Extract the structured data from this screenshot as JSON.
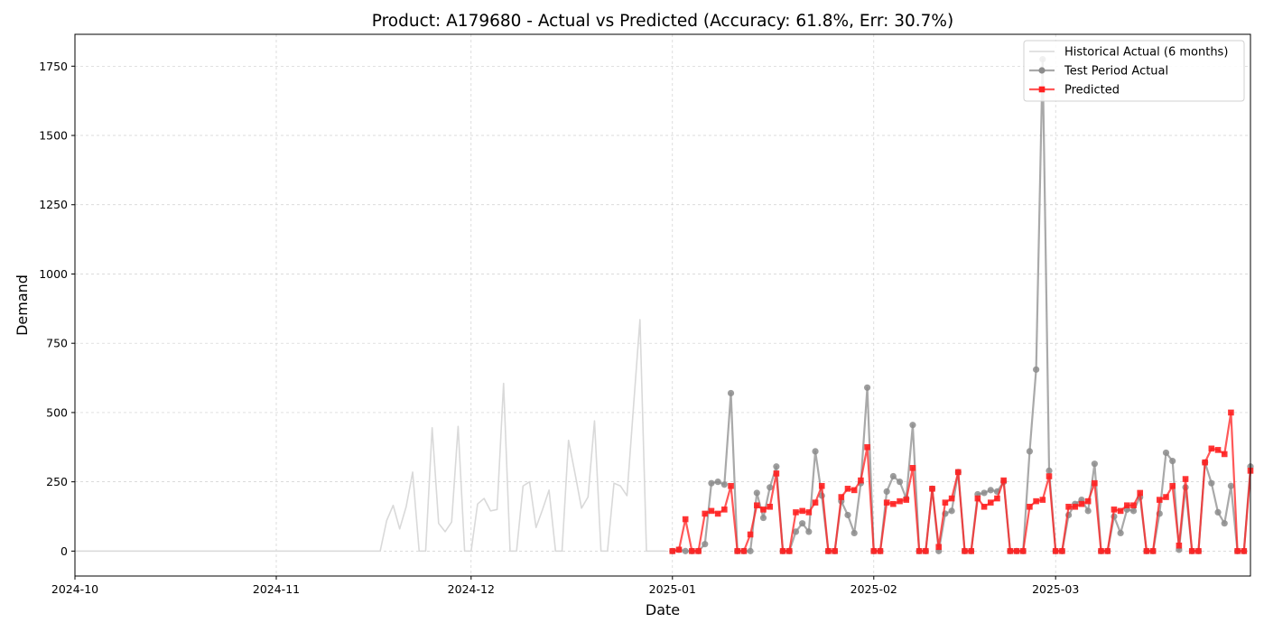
{
  "chart_data": {
    "type": "line",
    "title": "Product: A179680 - Actual vs Predicted (Accuracy: 61.8%, Err: 30.7%)",
    "xlabel": "Date",
    "ylabel": "Demand",
    "x_range": [
      "2024-10-01",
      "2025-03-31"
    ],
    "ylim": [
      -90,
      1865
    ],
    "y_ticks": [
      0,
      250,
      500,
      750,
      1000,
      1250,
      1500,
      1750
    ],
    "x_ticks": [
      {
        "date": "2024-10-01",
        "label": "2024-10"
      },
      {
        "date": "2024-11-01",
        "label": "2024-11"
      },
      {
        "date": "2024-12-01",
        "label": "2024-12"
      },
      {
        "date": "2025-01-01",
        "label": "2025-01"
      },
      {
        "date": "2025-02-01",
        "label": "2025-02"
      },
      {
        "date": "2025-03-01",
        "label": "2025-03"
      }
    ],
    "grid": true,
    "legend_position": "top-right",
    "series": [
      {
        "name": "Historical Actual (6 months)",
        "color": "#d9d9d9",
        "marker": "none",
        "points": [
          [
            "2024-10-01",
            0
          ],
          [
            "2024-10-15",
            0
          ],
          [
            "2024-11-01",
            0
          ],
          [
            "2024-11-15",
            0
          ],
          [
            "2024-11-17",
            0
          ],
          [
            "2024-11-18",
            110
          ],
          [
            "2024-11-19",
            165
          ],
          [
            "2024-11-20",
            80
          ],
          [
            "2024-11-21",
            160
          ],
          [
            "2024-11-22",
            285
          ],
          [
            "2024-11-23",
            0
          ],
          [
            "2024-11-24",
            0
          ],
          [
            "2024-11-25",
            445
          ],
          [
            "2024-11-26",
            100
          ],
          [
            "2024-11-27",
            70
          ],
          [
            "2024-11-28",
            105
          ],
          [
            "2024-11-29",
            450
          ],
          [
            "2024-11-30",
            0
          ],
          [
            "2024-12-01",
            0
          ],
          [
            "2024-12-02",
            170
          ],
          [
            "2024-12-03",
            190
          ],
          [
            "2024-12-04",
            145
          ],
          [
            "2024-12-05",
            150
          ],
          [
            "2024-12-06",
            605
          ],
          [
            "2024-12-07",
            0
          ],
          [
            "2024-12-08",
            0
          ],
          [
            "2024-12-09",
            235
          ],
          [
            "2024-12-10",
            250
          ],
          [
            "2024-12-11",
            85
          ],
          [
            "2024-12-12",
            150
          ],
          [
            "2024-12-13",
            220
          ],
          [
            "2024-12-14",
            0
          ],
          [
            "2024-12-15",
            0
          ],
          [
            "2024-12-16",
            400
          ],
          [
            "2024-12-17",
            280
          ],
          [
            "2024-12-18",
            155
          ],
          [
            "2024-12-19",
            195
          ],
          [
            "2024-12-20",
            470
          ],
          [
            "2024-12-21",
            0
          ],
          [
            "2024-12-22",
            0
          ],
          [
            "2024-12-23",
            245
          ],
          [
            "2024-12-24",
            235
          ],
          [
            "2024-12-25",
            200
          ],
          [
            "2024-12-26",
            520
          ],
          [
            "2024-12-27",
            835
          ],
          [
            "2024-12-28",
            0
          ],
          [
            "2024-12-31",
            0
          ]
        ]
      },
      {
        "name": "Test Period Actual",
        "color": "#8c8c8c",
        "marker": "circle",
        "points": [
          [
            "2025-01-01",
            0
          ],
          [
            "2025-01-02",
            5
          ],
          [
            "2025-01-03",
            0
          ],
          [
            "2025-01-04",
            0
          ],
          [
            "2025-01-05",
            0
          ],
          [
            "2025-01-06",
            25
          ],
          [
            "2025-01-07",
            245
          ],
          [
            "2025-01-08",
            250
          ],
          [
            "2025-01-09",
            240
          ],
          [
            "2025-01-10",
            570
          ],
          [
            "2025-01-11",
            0
          ],
          [
            "2025-01-12",
            0
          ],
          [
            "2025-01-13",
            0
          ],
          [
            "2025-01-14",
            210
          ],
          [
            "2025-01-15",
            120
          ],
          [
            "2025-01-16",
            230
          ],
          [
            "2025-01-17",
            305
          ],
          [
            "2025-01-18",
            0
          ],
          [
            "2025-01-19",
            0
          ],
          [
            "2025-01-20",
            70
          ],
          [
            "2025-01-21",
            100
          ],
          [
            "2025-01-22",
            70
          ],
          [
            "2025-01-23",
            360
          ],
          [
            "2025-01-24",
            200
          ],
          [
            "2025-01-25",
            0
          ],
          [
            "2025-01-26",
            0
          ],
          [
            "2025-01-27",
            180
          ],
          [
            "2025-01-28",
            130
          ],
          [
            "2025-01-29",
            65
          ],
          [
            "2025-01-30",
            245
          ],
          [
            "2025-01-31",
            590
          ],
          [
            "2025-02-01",
            0
          ],
          [
            "2025-02-02",
            0
          ],
          [
            "2025-02-03",
            215
          ],
          [
            "2025-02-04",
            270
          ],
          [
            "2025-02-05",
            250
          ],
          [
            "2025-02-06",
            190
          ],
          [
            "2025-02-07",
            455
          ],
          [
            "2025-02-08",
            0
          ],
          [
            "2025-02-09",
            0
          ],
          [
            "2025-02-10",
            225
          ],
          [
            "2025-02-11",
            0
          ],
          [
            "2025-02-12",
            135
          ],
          [
            "2025-02-13",
            145
          ],
          [
            "2025-02-14",
            285
          ],
          [
            "2025-02-15",
            0
          ],
          [
            "2025-02-16",
            0
          ],
          [
            "2025-02-17",
            205
          ],
          [
            "2025-02-18",
            210
          ],
          [
            "2025-02-19",
            220
          ],
          [
            "2025-02-20",
            215
          ],
          [
            "2025-02-21",
            250
          ],
          [
            "2025-02-22",
            0
          ],
          [
            "2025-02-23",
            0
          ],
          [
            "2025-02-24",
            0
          ],
          [
            "2025-02-25",
            360
          ],
          [
            "2025-02-26",
            655
          ],
          [
            "2025-02-27",
            1775
          ],
          [
            "2025-02-28",
            290
          ],
          [
            "2025-03-01",
            0
          ],
          [
            "2025-03-02",
            0
          ],
          [
            "2025-03-03",
            130
          ],
          [
            "2025-03-04",
            170
          ],
          [
            "2025-03-05",
            185
          ],
          [
            "2025-03-06",
            145
          ],
          [
            "2025-03-07",
            315
          ],
          [
            "2025-03-08",
            0
          ],
          [
            "2025-03-09",
            0
          ],
          [
            "2025-03-10",
            125
          ],
          [
            "2025-03-11",
            65
          ],
          [
            "2025-03-12",
            150
          ],
          [
            "2025-03-13",
            145
          ],
          [
            "2025-03-14",
            195
          ],
          [
            "2025-03-15",
            0
          ],
          [
            "2025-03-16",
            0
          ],
          [
            "2025-03-17",
            135
          ],
          [
            "2025-03-18",
            355
          ],
          [
            "2025-03-19",
            325
          ],
          [
            "2025-03-20",
            5
          ],
          [
            "2025-03-21",
            230
          ],
          [
            "2025-03-22",
            0
          ],
          [
            "2025-03-23",
            0
          ],
          [
            "2025-03-24",
            320
          ],
          [
            "2025-03-25",
            245
          ],
          [
            "2025-03-26",
            140
          ],
          [
            "2025-03-27",
            100
          ],
          [
            "2025-03-28",
            235
          ],
          [
            "2025-03-29",
            0
          ],
          [
            "2025-03-30",
            0
          ],
          [
            "2025-03-31",
            305
          ]
        ]
      },
      {
        "name": "Predicted",
        "color": "#ff2020",
        "marker": "square",
        "points": [
          [
            "2025-01-01",
            0
          ],
          [
            "2025-01-02",
            5
          ],
          [
            "2025-01-03",
            115
          ],
          [
            "2025-01-04",
            0
          ],
          [
            "2025-01-05",
            0
          ],
          [
            "2025-01-06",
            135
          ],
          [
            "2025-01-07",
            145
          ],
          [
            "2025-01-08",
            135
          ],
          [
            "2025-01-09",
            150
          ],
          [
            "2025-01-10",
            235
          ],
          [
            "2025-01-11",
            0
          ],
          [
            "2025-01-12",
            0
          ],
          [
            "2025-01-13",
            60
          ],
          [
            "2025-01-14",
            165
          ],
          [
            "2025-01-15",
            150
          ],
          [
            "2025-01-16",
            160
          ],
          [
            "2025-01-17",
            280
          ],
          [
            "2025-01-18",
            0
          ],
          [
            "2025-01-19",
            0
          ],
          [
            "2025-01-20",
            140
          ],
          [
            "2025-01-21",
            145
          ],
          [
            "2025-01-22",
            140
          ],
          [
            "2025-01-23",
            175
          ],
          [
            "2025-01-24",
            235
          ],
          [
            "2025-01-25",
            0
          ],
          [
            "2025-01-26",
            0
          ],
          [
            "2025-01-27",
            195
          ],
          [
            "2025-01-28",
            225
          ],
          [
            "2025-01-29",
            220
          ],
          [
            "2025-01-30",
            255
          ],
          [
            "2025-01-31",
            375
          ],
          [
            "2025-02-01",
            0
          ],
          [
            "2025-02-02",
            0
          ],
          [
            "2025-02-03",
            175
          ],
          [
            "2025-02-04",
            170
          ],
          [
            "2025-02-05",
            180
          ],
          [
            "2025-02-06",
            185
          ],
          [
            "2025-02-07",
            300
          ],
          [
            "2025-02-08",
            0
          ],
          [
            "2025-02-09",
            0
          ],
          [
            "2025-02-10",
            225
          ],
          [
            "2025-02-11",
            15
          ],
          [
            "2025-02-12",
            175
          ],
          [
            "2025-02-13",
            190
          ],
          [
            "2025-02-14",
            285
          ],
          [
            "2025-02-15",
            0
          ],
          [
            "2025-02-16",
            0
          ],
          [
            "2025-02-17",
            190
          ],
          [
            "2025-02-18",
            160
          ],
          [
            "2025-02-19",
            175
          ],
          [
            "2025-02-20",
            190
          ],
          [
            "2025-02-21",
            255
          ],
          [
            "2025-02-22",
            0
          ],
          [
            "2025-02-23",
            0
          ],
          [
            "2025-02-24",
            0
          ],
          [
            "2025-02-25",
            160
          ],
          [
            "2025-02-26",
            180
          ],
          [
            "2025-02-27",
            185
          ],
          [
            "2025-02-28",
            270
          ],
          [
            "2025-03-01",
            0
          ],
          [
            "2025-03-02",
            0
          ],
          [
            "2025-03-03",
            160
          ],
          [
            "2025-03-04",
            160
          ],
          [
            "2025-03-05",
            170
          ],
          [
            "2025-03-06",
            180
          ],
          [
            "2025-03-07",
            245
          ],
          [
            "2025-03-08",
            0
          ],
          [
            "2025-03-09",
            0
          ],
          [
            "2025-03-10",
            150
          ],
          [
            "2025-03-11",
            145
          ],
          [
            "2025-03-12",
            165
          ],
          [
            "2025-03-13",
            165
          ],
          [
            "2025-03-14",
            210
          ],
          [
            "2025-03-15",
            0
          ],
          [
            "2025-03-16",
            0
          ],
          [
            "2025-03-17",
            185
          ],
          [
            "2025-03-18",
            195
          ],
          [
            "2025-03-19",
            235
          ],
          [
            "2025-03-20",
            20
          ],
          [
            "2025-03-21",
            260
          ],
          [
            "2025-03-22",
            0
          ],
          [
            "2025-03-23",
            0
          ],
          [
            "2025-03-24",
            320
          ],
          [
            "2025-03-25",
            370
          ],
          [
            "2025-03-26",
            365
          ],
          [
            "2025-03-27",
            350
          ],
          [
            "2025-03-28",
            500
          ],
          [
            "2025-03-29",
            0
          ],
          [
            "2025-03-30",
            0
          ],
          [
            "2025-03-31",
            290
          ]
        ]
      }
    ]
  }
}
